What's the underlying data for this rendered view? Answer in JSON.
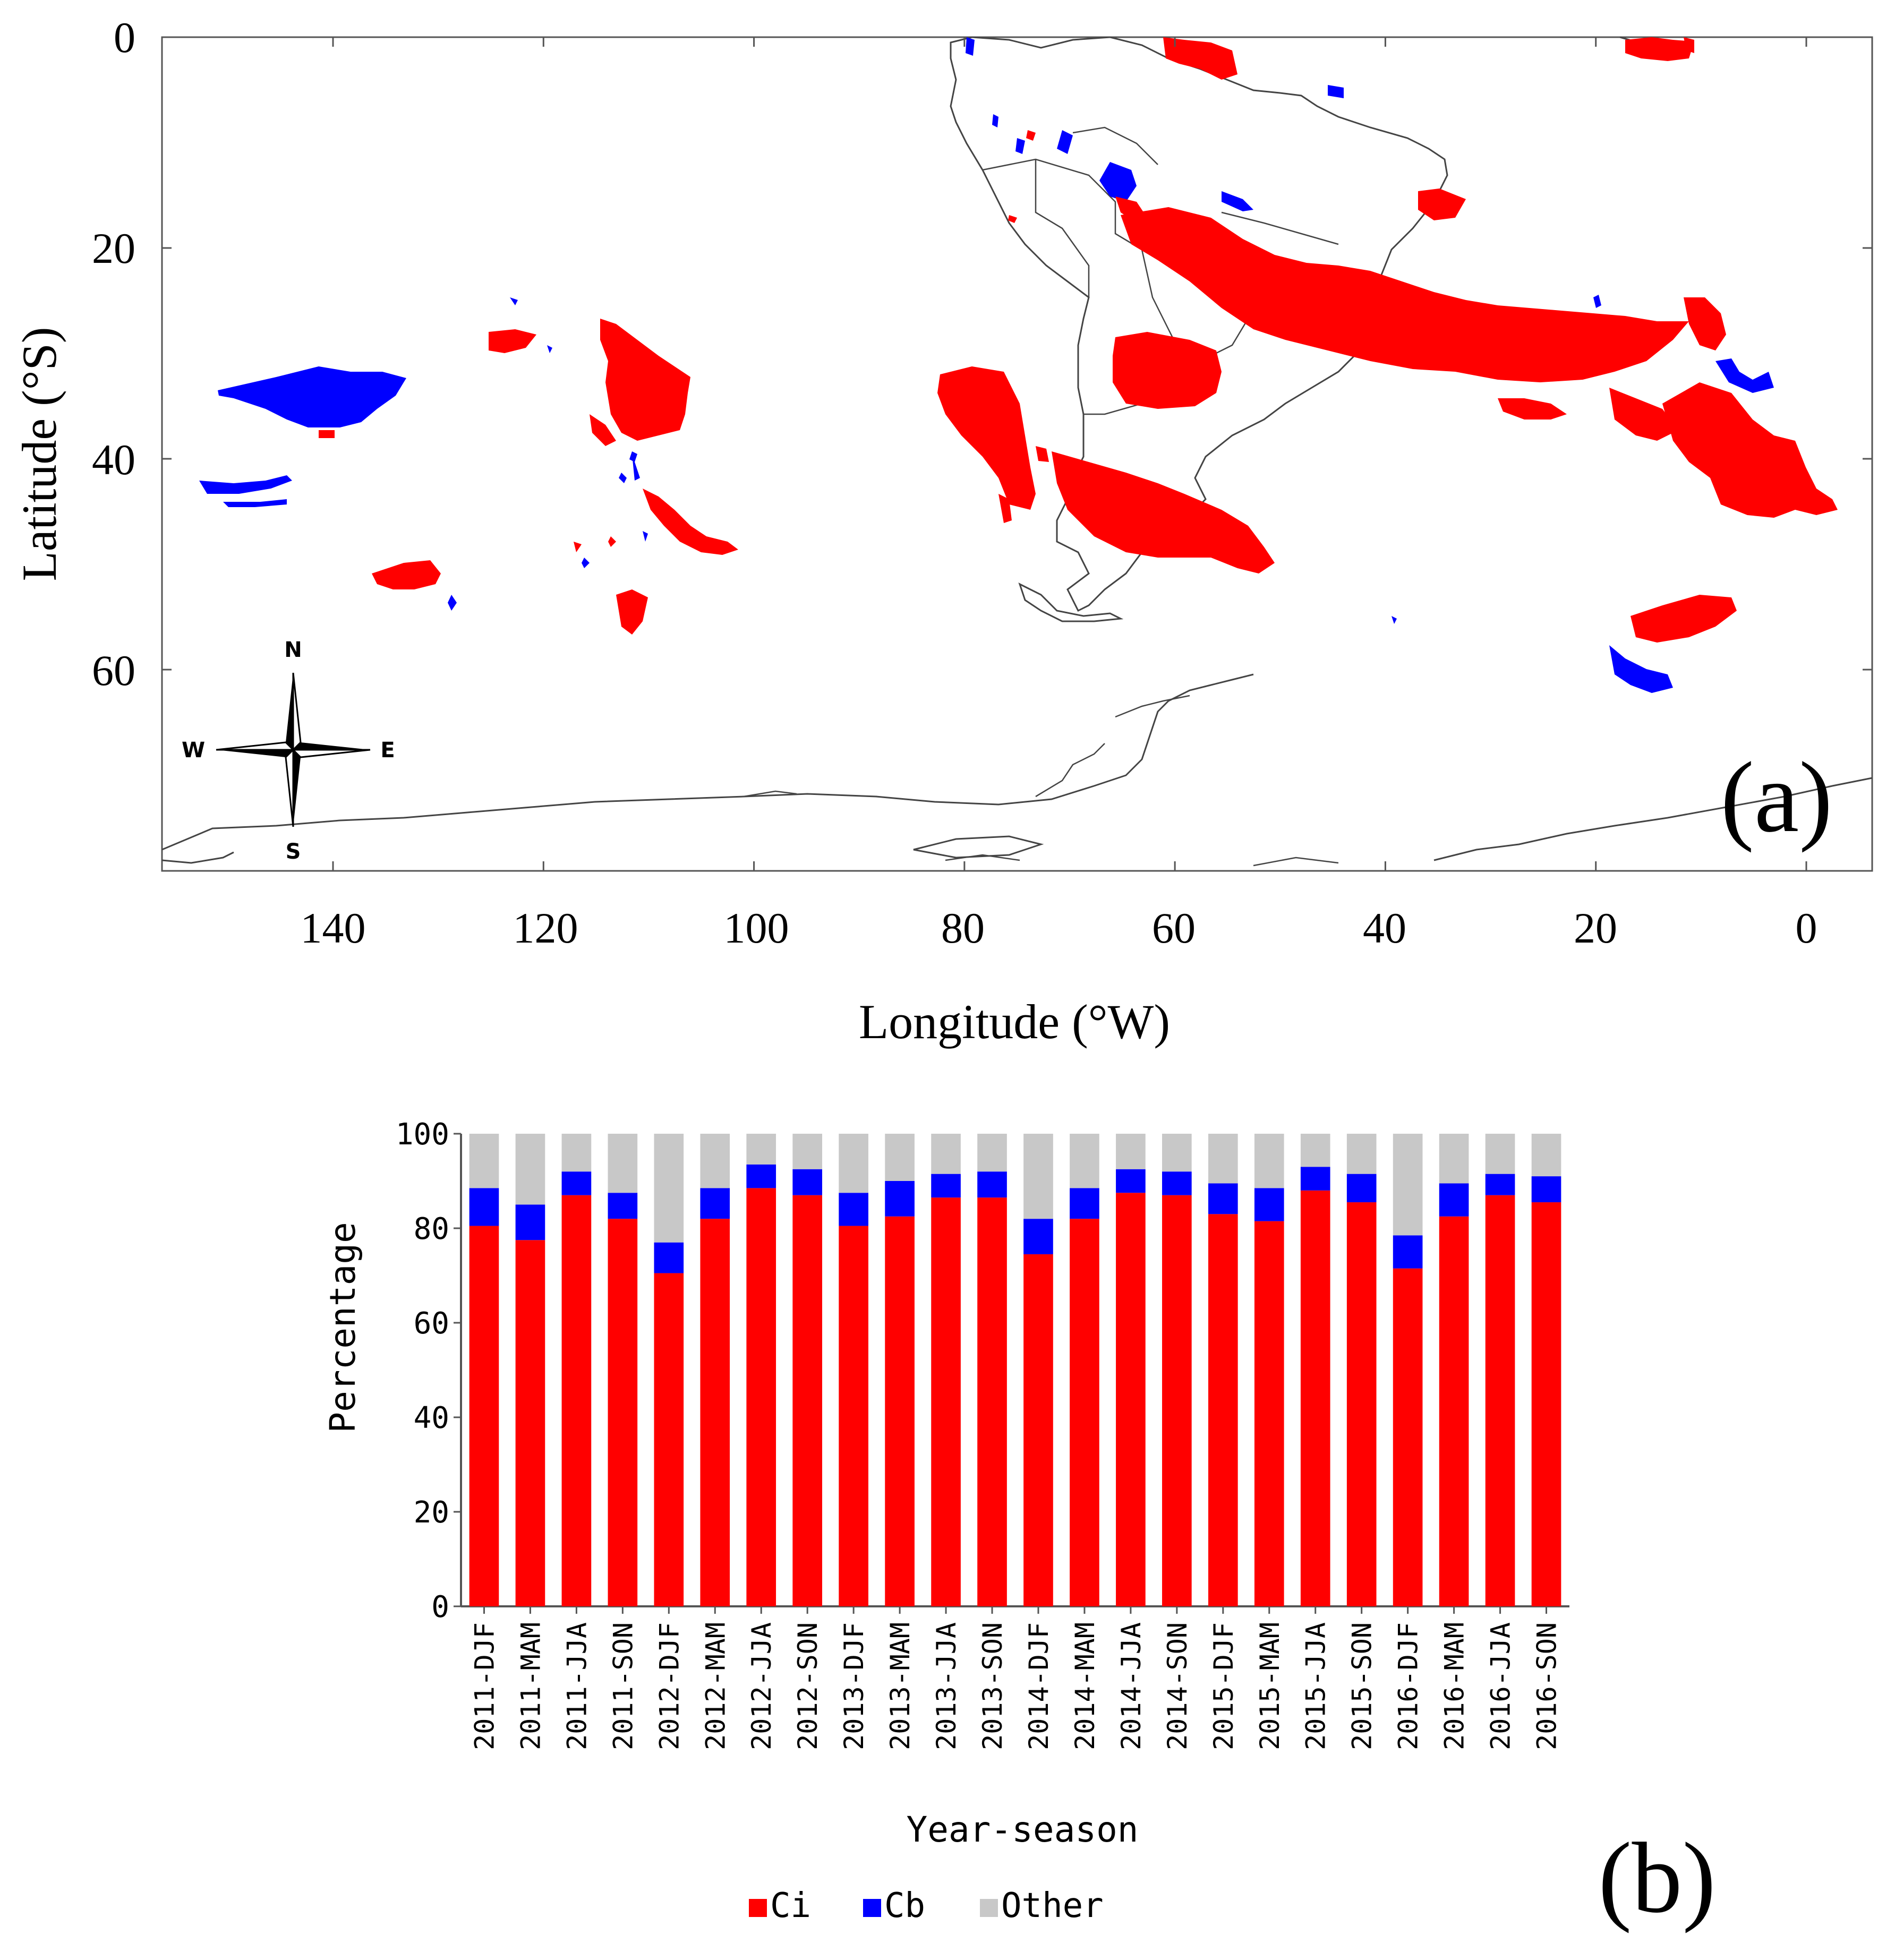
{
  "panel_a": {
    "panel_label": "(a)",
    "xlabel": "Longitude (°W)",
    "ylabel": "Latitude (°S)",
    "x_ticks": [
      "140",
      "120",
      "100",
      "80",
      "60",
      "40",
      "20",
      "0"
    ],
    "x_tick_values": [
      140,
      120,
      100,
      80,
      60,
      40,
      20,
      0
    ],
    "y_ticks": [
      "0",
      "20",
      "40",
      "60"
    ],
    "y_tick_values": [
      0,
      20,
      40,
      60
    ],
    "compass": {
      "north": "N",
      "south": "S",
      "east": "E",
      "west": "W"
    },
    "colors": {
      "ci": "#ff0000",
      "cb": "#0000ff",
      "coast": "#444444"
    }
  },
  "chart_data": {
    "type": "bar",
    "stacked": true,
    "title": "",
    "panel_label": "(b)",
    "xlabel": "Year-season",
    "ylabel": "Percentage",
    "ylim": [
      0,
      100
    ],
    "y_ticks": [
      "0",
      "20",
      "40",
      "60",
      "80",
      "100"
    ],
    "y_tick_values": [
      0,
      20,
      40,
      60,
      80,
      100
    ],
    "categories": [
      "2011-DJF",
      "2011-MAM",
      "2011-JJA",
      "2011-SON",
      "2012-DJF",
      "2012-MAM",
      "2012-JJA",
      "2012-SON",
      "2013-DJF",
      "2013-MAM",
      "2013-JJA",
      "2013-SON",
      "2014-DJF",
      "2014-MAM",
      "2014-JJA",
      "2014-SON",
      "2015-DJF",
      "2015-MAM",
      "2015-JJA",
      "2015-SON",
      "2016-DJF",
      "2016-MAM",
      "2016-JJA",
      "2016-SON"
    ],
    "series": [
      {
        "name": "Ci",
        "color": "#ff0000",
        "values": [
          80.5,
          77.5,
          87,
          82,
          70.5,
          82,
          88.5,
          87,
          80.5,
          82.5,
          86.5,
          86.5,
          74.5,
          82,
          87.5,
          87,
          83,
          81.5,
          88,
          85.5,
          71.5,
          82.5,
          87,
          85.5
        ]
      },
      {
        "name": "Cb",
        "color": "#0000ff",
        "values": [
          8,
          7.5,
          5,
          5.5,
          6.5,
          6.5,
          5,
          5.5,
          7,
          7.5,
          5,
          5.5,
          7.5,
          6.5,
          5,
          5,
          6.5,
          7,
          5,
          6,
          7,
          7,
          4.5,
          5.5
        ]
      },
      {
        "name": "Other",
        "color": "#c8c8c8",
        "values": [
          11.5,
          15,
          8,
          12.5,
          23,
          11.5,
          6.5,
          7.5,
          12.5,
          10,
          8.5,
          8,
          18,
          11.5,
          7.5,
          8,
          10.5,
          11.5,
          7,
          8.5,
          21.5,
          10.5,
          8.5,
          9
        ]
      }
    ],
    "legend": [
      "Ci",
      "Cb",
      "Other"
    ],
    "legend_position": "bottom-center"
  }
}
